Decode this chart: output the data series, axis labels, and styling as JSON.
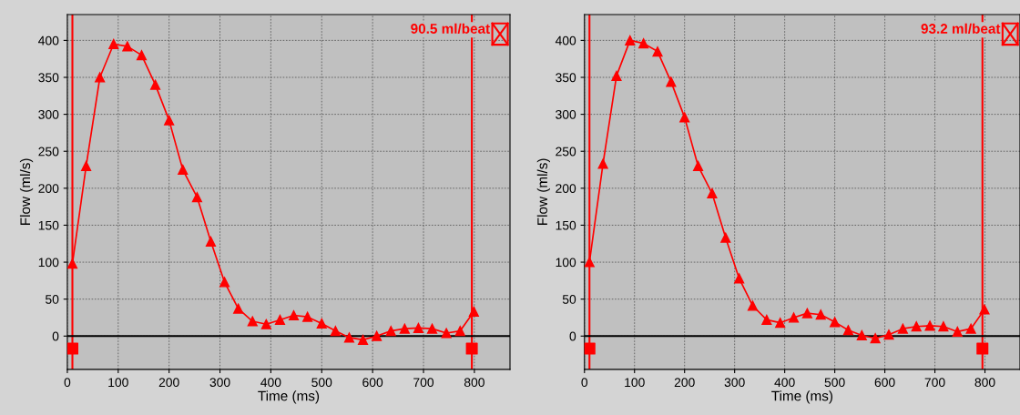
{
  "chart_data": [
    {
      "type": "line",
      "xlabel": "Time (ms)",
      "ylabel": "Flow (ml/s)",
      "xlim": [
        0,
        870
      ],
      "ylim": [
        -45,
        435
      ],
      "xticks": [
        0,
        100,
        200,
        300,
        400,
        500,
        600,
        700,
        800
      ],
      "yticks": [
        0,
        50,
        100,
        150,
        200,
        250,
        300,
        350,
        400
      ],
      "grid": true,
      "marker": "triangle",
      "annotations": [
        "90.5 ml/beat"
      ],
      "ref_lines": [
        {
          "axis": "x",
          "value": 10,
          "color": "#ff0000"
        },
        {
          "axis": "x",
          "value": 795,
          "color": "#ff0000"
        },
        {
          "axis": "y",
          "value": 0,
          "color": "#000000"
        }
      ],
      "series": [
        {
          "color": "#ff0000",
          "x": [
            10,
            37,
            64,
            91,
            118,
            146,
            173,
            200,
            227,
            255,
            282,
            309,
            336,
            364,
            391,
            418,
            445,
            472,
            500,
            527,
            554,
            581,
            608,
            636,
            663,
            690,
            717,
            745,
            772,
            799
          ],
          "values": [
            98,
            230,
            350,
            395,
            392,
            380,
            340,
            292,
            225,
            188,
            128,
            73,
            37,
            20,
            16,
            22,
            28,
            26,
            17,
            7,
            -2,
            -5,
            0,
            7,
            10,
            11,
            10,
            4,
            7,
            33
          ]
        },
        {
          "type": "scatter",
          "marker": "square",
          "color": "#ff0000",
          "x": [
            10,
            795
          ],
          "values": [
            -17,
            -17
          ]
        }
      ]
    },
    {
      "type": "line",
      "xlabel": "Time (ms)",
      "ylabel": "Flow (ml/s)",
      "xlim": [
        0,
        870
      ],
      "ylim": [
        -45,
        435
      ],
      "xticks": [
        0,
        100,
        200,
        300,
        400,
        500,
        600,
        700,
        800
      ],
      "yticks": [
        0,
        50,
        100,
        150,
        200,
        250,
        300,
        350,
        400
      ],
      "grid": true,
      "marker": "triangle",
      "annotations": [
        "93.2 ml/beat"
      ],
      "ref_lines": [
        {
          "axis": "x",
          "value": 10,
          "color": "#ff0000"
        },
        {
          "axis": "x",
          "value": 795,
          "color": "#ff0000"
        },
        {
          "axis": "y",
          "value": 0,
          "color": "#000000"
        }
      ],
      "series": [
        {
          "color": "#ff0000",
          "x": [
            10,
            37,
            64,
            91,
            118,
            146,
            173,
            200,
            227,
            255,
            282,
            309,
            336,
            364,
            391,
            418,
            445,
            472,
            500,
            527,
            554,
            581,
            608,
            636,
            663,
            690,
            717,
            745,
            772,
            799
          ],
          "values": [
            100,
            233,
            352,
            400,
            396,
            385,
            344,
            296,
            230,
            193,
            133,
            78,
            41,
            22,
            18,
            25,
            31,
            29,
            19,
            8,
            1,
            -3,
            2,
            10,
            13,
            14,
            13,
            6,
            10,
            36
          ]
        },
        {
          "type": "scatter",
          "marker": "square",
          "color": "#ff0000",
          "x": [
            10,
            795
          ],
          "values": [
            -17,
            -17
          ]
        }
      ]
    }
  ]
}
